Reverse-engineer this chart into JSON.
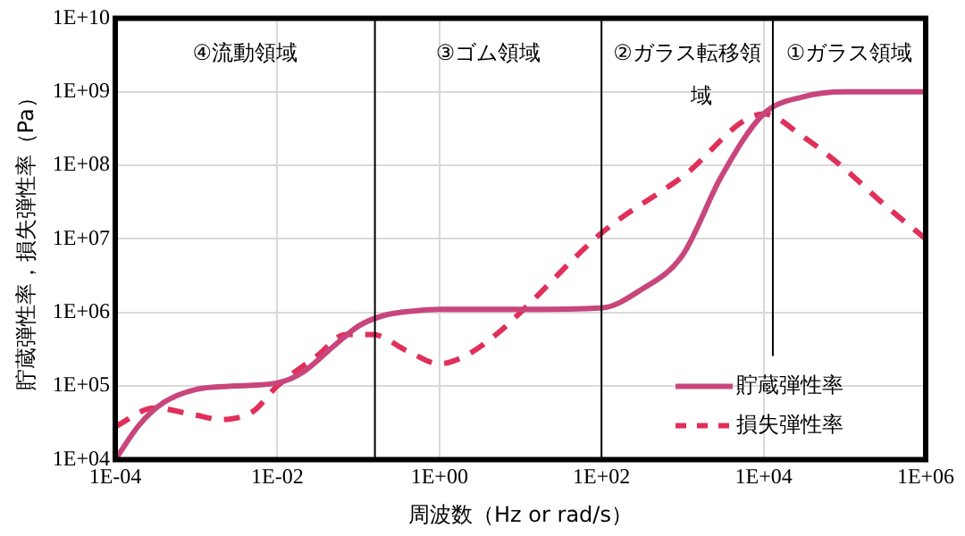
{
  "chart_data": {
    "type": "line",
    "xlabel": "周波数（Hz or rad/s）",
    "ylabel": "貯蔵弾性率，損失弾性率（Pa）",
    "log": "xy",
    "grid": true,
    "legend": "bottom right",
    "marker": "none",
    "xlim": [
      0.0001,
      1000000
    ],
    "ylim": [
      10000,
      10000000000
    ],
    "xticks": [
      {
        "value": 0.0001,
        "label": "1E-04"
      },
      {
        "value": 0.01,
        "label": "1E-02"
      },
      {
        "value": 1,
        "label": "1E+00"
      },
      {
        "value": 100,
        "label": "1E+02"
      },
      {
        "value": 10000,
        "label": "1E+04"
      },
      {
        "value": 1000000,
        "label": "1E+06"
      }
    ],
    "yticks": [
      {
        "value": 10000,
        "label": "1E+04"
      },
      {
        "value": 100000,
        "label": "1E+05"
      },
      {
        "value": 1000000,
        "label": "1E+06"
      },
      {
        "value": 10000000,
        "label": "1E+07"
      },
      {
        "value": 100000000,
        "label": "1E+08"
      },
      {
        "value": 1000000000,
        "label": "1E+09"
      },
      {
        "value": 10000000000,
        "label": "1E+10"
      }
    ],
    "series": [
      {
        "name": "貯蔵弾性率",
        "line_style": "solid",
        "color": "#c8467c",
        "x": [
          0.0001,
          0.0002,
          0.0004,
          0.001,
          0.003,
          0.01,
          0.02,
          0.05,
          0.1,
          0.2,
          0.5,
          1,
          10,
          100,
          300,
          1000,
          3000,
          10000,
          30000,
          100000,
          1000000
        ],
        "values": [
          10000,
          30000,
          60000,
          90000,
          100000,
          110000,
          150000,
          350000,
          650000,
          900000,
          1050000,
          1100000,
          1100000,
          1150000,
          2000000,
          6000000,
          70000000,
          500000000,
          850000000,
          1000000000,
          1000000000
        ]
      },
      {
        "name": "損失弾性率",
        "line_style": "dashed",
        "color": "#e0305a",
        "x": [
          0.0001,
          0.0003,
          0.001,
          0.002,
          0.005,
          0.01,
          0.03,
          0.07,
          0.15,
          0.4,
          1,
          2,
          5,
          10,
          100,
          1000,
          10000,
          30000,
          100000,
          300000,
          1000000
        ],
        "values": [
          28000,
          50000,
          40000,
          35000,
          45000,
          100000,
          250000,
          500000,
          500000,
          300000,
          200000,
          250000,
          500000,
          1000000,
          12000000,
          70000000,
          500000000,
          250000000,
          90000000,
          30000000,
          10000000
        ]
      }
    ],
    "ref_lines": [
      {
        "axis": "x",
        "value": 0.16,
        "color": "#000000"
      },
      {
        "axis": "x",
        "value": 100,
        "color": "#000000"
      },
      {
        "axis": "x",
        "value": 13000,
        "color": "#000000"
      }
    ],
    "annotations": [
      "④流動領域",
      "③ゴム領域",
      "②ガラス転移領域",
      "①ガラス領域"
    ]
  }
}
